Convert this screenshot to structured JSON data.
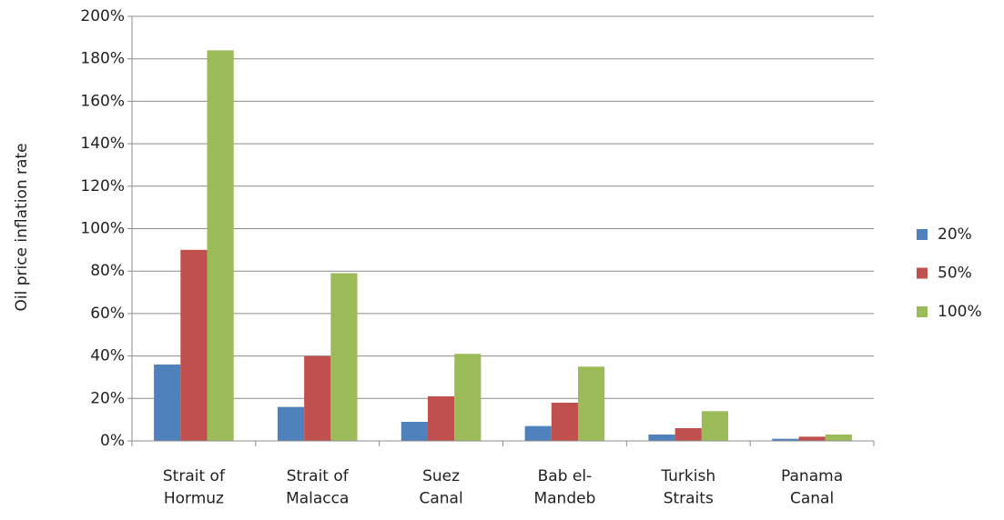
{
  "chart_data": {
    "type": "bar",
    "y_label": "Oil price inflation rate",
    "categories": [
      "Strait of\nHormuz",
      "Strait of\nMalacca",
      "Suez\nCanal",
      "Bab el-\nMandeb",
      "Turkish\nStraits",
      "Panama\nCanal"
    ],
    "series": [
      {
        "name": "20%",
        "color": "#4f81bd",
        "values": [
          36,
          16,
          9,
          7,
          3,
          1
        ]
      },
      {
        "name": "50%",
        "color": "#c0504d",
        "values": [
          90,
          40,
          21,
          18,
          6,
          2
        ]
      },
      {
        "name": "100%",
        "color": "#9bbb59",
        "values": [
          184,
          79,
          41,
          35,
          14,
          3
        ]
      }
    ],
    "ylim": [
      0,
      200
    ],
    "yticks": [
      {
        "value": 0,
        "label": "0%"
      },
      {
        "value": 20,
        "label": "20%"
      },
      {
        "value": 40,
        "label": "40%"
      },
      {
        "value": 60,
        "label": "60%"
      },
      {
        "value": 80,
        "label": "80%"
      },
      {
        "value": 100,
        "label": "100%"
      },
      {
        "value": 120,
        "label": "120%"
      },
      {
        "value": 140,
        "label": "140%"
      },
      {
        "value": 160,
        "label": "160%"
      },
      {
        "value": 180,
        "label": "180%"
      },
      {
        "value": 200,
        "label": "200%"
      }
    ],
    "grid": true,
    "legend": "right"
  }
}
